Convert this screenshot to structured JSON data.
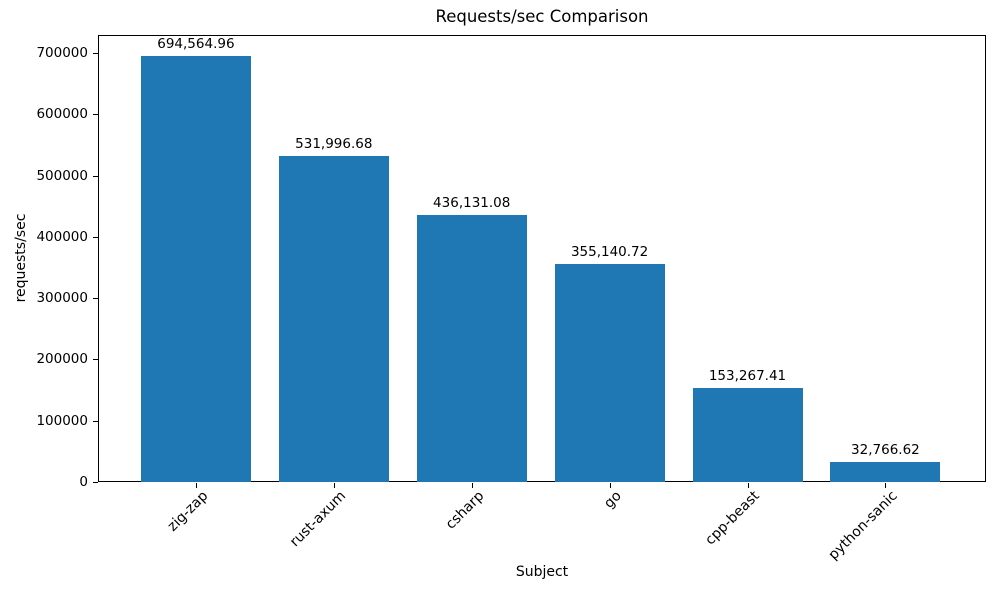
{
  "chart_data": {
    "type": "bar",
    "title": "Requests/sec Comparison",
    "xlabel": "Subject",
    "ylabel": "requests/sec",
    "categories": [
      "zig-zap",
      "rust-axum",
      "csharp",
      "go",
      "cpp-beast",
      "python-sanic"
    ],
    "values": [
      694564.96,
      531996.68,
      436131.08,
      355140.72,
      153267.41,
      32766.62
    ],
    "value_labels": [
      "694,564.96",
      "531,996.68",
      "436,131.08",
      "355,140.72",
      "153,267.41",
      "32,766.62"
    ],
    "ytick_values": [
      0,
      100000,
      200000,
      300000,
      400000,
      500000,
      600000,
      700000
    ],
    "ytick_labels": [
      "0",
      "100000",
      "200000",
      "300000",
      "400000",
      "500000",
      "600000",
      "700000"
    ],
    "ylim": [
      0,
      729300
    ],
    "bar_color": "#1f77b4",
    "grid": false,
    "legend": null,
    "x_tick_rotation": 45
  }
}
